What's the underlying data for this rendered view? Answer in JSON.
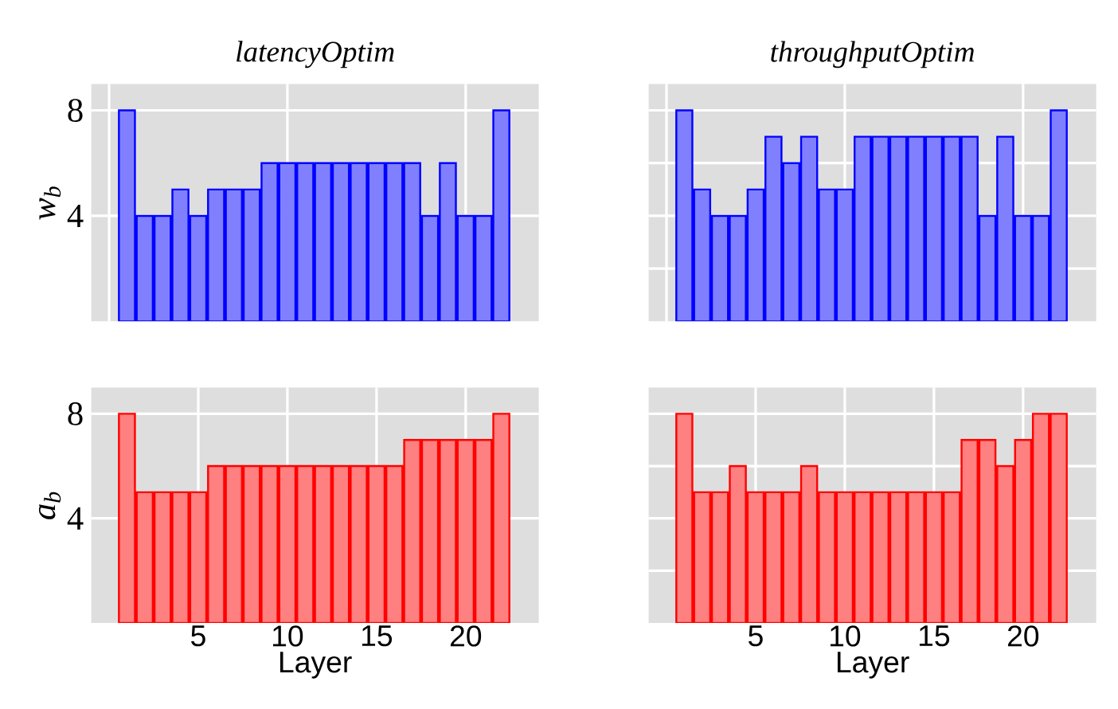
{
  "chart_data": [
    {
      "type": "bar",
      "title": "latencyOptim",
      "ylabel": "w$_{b}$",
      "x": [
        1,
        2,
        3,
        4,
        5,
        6,
        7,
        8,
        9,
        10,
        11,
        12,
        13,
        14,
        15,
        16,
        17,
        18,
        19,
        20,
        21,
        22
      ],
      "values": [
        8,
        4,
        4,
        5,
        4,
        5,
        5,
        5,
        6,
        6,
        6,
        6,
        6,
        6,
        6,
        6,
        6,
        4,
        6,
        4,
        4,
        8
      ],
      "color": "#8080ff",
      "xlim": [
        -1,
        24.1
      ],
      "ylim": [
        0,
        9
      ],
      "xticks": [
        {
          "value": 0,
          "label": null
        },
        {
          "value": 10,
          "label": null
        },
        {
          "value": 20,
          "label": null
        }
      ],
      "yticks": [
        4,
        8
      ],
      "grid": true,
      "tick_labels": "y"
    },
    {
      "type": "bar",
      "title": "throughputOptim",
      "x": [
        1,
        2,
        3,
        4,
        5,
        6,
        7,
        8,
        9,
        10,
        11,
        12,
        13,
        14,
        15,
        16,
        17,
        18,
        19,
        20,
        21,
        22
      ],
      "values": [
        8,
        5,
        4,
        4,
        5,
        7,
        6,
        7,
        5,
        5,
        7,
        7,
        7,
        7,
        7,
        7,
        7,
        4,
        7,
        4,
        4,
        8
      ],
      "color": "#8080ff",
      "xlim": [
        -1,
        24.1
      ],
      "ylim": [
        0,
        9
      ],
      "xticks": [
        {
          "value": 0,
          "label": null
        },
        {
          "value": 10,
          "label": null
        },
        {
          "value": 20,
          "label": null
        }
      ],
      "yticks": [
        2,
        4,
        6,
        8
      ],
      "grid": true,
      "tick_labels": false
    },
    {
      "type": "bar",
      "xlabel": "Layer",
      "ylabel": "a$_{b}$",
      "x": [
        1,
        2,
        3,
        4,
        5,
        6,
        7,
        8,
        9,
        10,
        11,
        12,
        13,
        14,
        15,
        16,
        17,
        18,
        19,
        20,
        21,
        22
      ],
      "values": [
        8,
        5,
        5,
        5,
        5,
        6,
        6,
        6,
        6,
        6,
        6,
        6,
        6,
        6,
        6,
        6,
        7,
        7,
        7,
        7,
        7,
        8
      ],
      "color": "#ff8080",
      "xlim": [
        -1,
        24.1
      ],
      "ylim": [
        0,
        9
      ],
      "xticks": [
        5,
        10,
        15,
        20
      ],
      "yticks": [
        4,
        8
      ],
      "grid": true
    },
    {
      "type": "bar",
      "xlabel": "Layer",
      "x": [
        1,
        2,
        3,
        4,
        5,
        6,
        7,
        8,
        9,
        10,
        11,
        12,
        13,
        14,
        15,
        16,
        17,
        18,
        19,
        20,
        21,
        22
      ],
      "values": [
        8,
        5,
        5,
        6,
        5,
        5,
        5,
        6,
        5,
        5,
        5,
        5,
        5,
        5,
        5,
        5,
        7,
        7,
        6,
        7,
        8,
        8
      ],
      "color": "#ff8080",
      "xlim": [
        -1,
        24.1
      ],
      "ylim": [
        0,
        9
      ],
      "xticks": [
        5,
        10,
        15,
        20
      ],
      "yticks": [
        2,
        4,
        6,
        8
      ],
      "grid": true,
      "tick_labels": "x"
    }
  ]
}
